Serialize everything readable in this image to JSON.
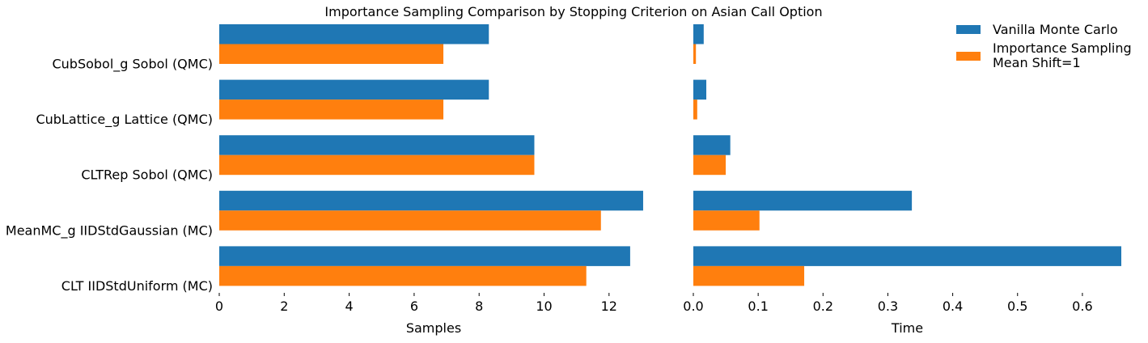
{
  "chart_data": {
    "type": "bar",
    "orientation": "horizontal",
    "title": "Importance Sampling Comparison by Stopping Criterion on Asian Call Option",
    "categories": [
      "CubSobol_g Sobol (QMC)",
      "CubLattice_g Lattice (QMC)",
      "CLTRep Sobol (QMC)",
      "MeanMC_g IIDStdGaussian (MC)",
      "CLT IIDStdUniform (MC)"
    ],
    "legend": {
      "placement": "top-right",
      "entries": [
        {
          "label": "Vanilla Monte Carlo",
          "color": "#1f77b4"
        },
        {
          "label_lines": [
            "Importance Sampling",
            "Mean Shift=1"
          ],
          "color": "#ff7f0e"
        }
      ]
    },
    "panels": [
      {
        "xlabel": "Samples",
        "xlim": [
          0,
          13.2
        ],
        "ticks": [
          0,
          2,
          4,
          6,
          8,
          10,
          12
        ],
        "tick_labels": [
          "0",
          "2",
          "4",
          "6",
          "8",
          "10",
          "12"
        ],
        "series": [
          {
            "color": "#1f77b4",
            "values": [
              8.3,
              8.3,
              9.7,
              13.05,
              12.65
            ]
          },
          {
            "color": "#ff7f0e",
            "values": [
              6.9,
              6.9,
              9.7,
              11.75,
              11.3
            ]
          }
        ]
      },
      {
        "xlabel": "Time",
        "xlim": [
          0,
          0.66
        ],
        "ticks": [
          0.0,
          0.1,
          0.2,
          0.3,
          0.4,
          0.5,
          0.6
        ],
        "tick_labels": [
          "0.0",
          "0.1",
          "0.2",
          "0.3",
          "0.4",
          "0.5",
          "0.6"
        ],
        "series": [
          {
            "color": "#1f77b4",
            "values": [
              0.016,
              0.02,
              0.057,
              0.337,
              0.66
            ]
          },
          {
            "color": "#ff7f0e",
            "values": [
              0.004,
              0.006,
              0.05,
              0.102,
              0.171
            ]
          }
        ]
      }
    ]
  }
}
